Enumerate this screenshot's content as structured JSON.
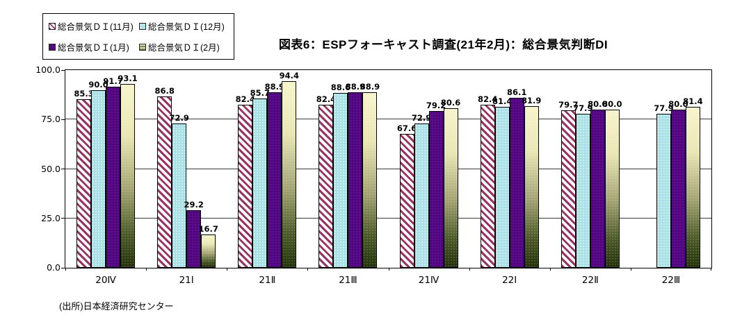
{
  "title": "図表6：ESPフォーキャスト調査(21年2月)：総合景気判断DI",
  "source_note": "(出所)日本経済研究センター",
  "colors": {
    "hatch_stripe": "#993366",
    "bar_cyan": "#a9e0e6",
    "bar_purple": "#5c0a8c",
    "gradient_top": "#f7f4cc",
    "gradient_bottom": "#233208",
    "axis": "#000000"
  },
  "chart_data": {
    "type": "bar",
    "title": "図表6：ESPフォーキャスト調査(21年2月)：総合景気判断DI",
    "categories": [
      "20Ⅳ",
      "21Ⅰ",
      "21Ⅱ",
      "21Ⅲ",
      "21Ⅳ",
      "22Ⅰ",
      "22Ⅱ",
      "22Ⅲ"
    ],
    "series": [
      {
        "name": "総合景気ＤＩ(11月)",
        "style": "hatched",
        "values": [
          85.3,
          86.8,
          82.4,
          82.4,
          67.6,
          82.4,
          79.7,
          null
        ]
      },
      {
        "name": "総合景気ＤＩ(12月)",
        "style": "cyan",
        "values": [
          90.0,
          72.9,
          85.7,
          88.6,
          72.9,
          81.4,
          77.9,
          77.9
        ]
      },
      {
        "name": "総合景気ＤＩ(1月)",
        "style": "purple",
        "values": [
          91.7,
          29.2,
          88.9,
          88.9,
          79.2,
          86.1,
          80.0,
          80.0
        ]
      },
      {
        "name": "総合景気ＤＩ(2月)",
        "style": "gradient",
        "values": [
          93.1,
          16.7,
          94.4,
          88.9,
          80.6,
          81.9,
          80.0,
          81.4
        ]
      }
    ],
    "xlabel": "",
    "ylabel": "",
    "ylim": [
      0,
      100
    ],
    "ytick_labels": [
      "100.0",
      "75.0",
      "50.0",
      "25.0",
      "0.0"
    ],
    "grid": true,
    "gridline_values": [
      25,
      50,
      75
    ],
    "legend_position": "top-left",
    "data_labels": true,
    "data_label_decimals": 1
  }
}
